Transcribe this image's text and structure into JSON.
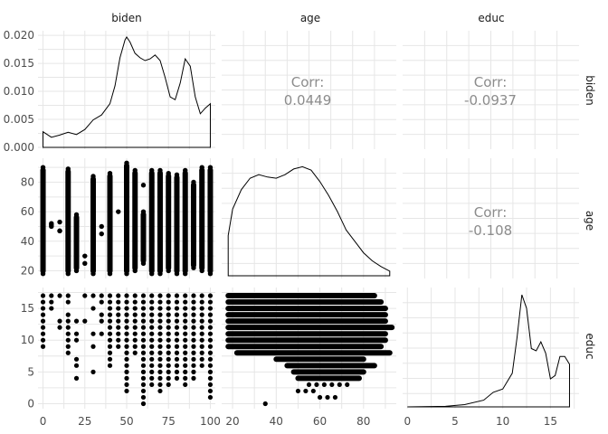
{
  "chart_data": {
    "type": "scatter",
    "title": "",
    "variables": [
      "biden",
      "age",
      "educ"
    ],
    "grid": true,
    "diagonal": [
      {
        "variable": "biden",
        "type": "density",
        "x": [
          0,
          5,
          10,
          15,
          20,
          25,
          30,
          35,
          40,
          43,
          46,
          49,
          50,
          52,
          55,
          58,
          61,
          64,
          67,
          70,
          73,
          76,
          79,
          82,
          85,
          88,
          91,
          94,
          97,
          100
        ],
        "y": [
          0.0028,
          0.0018,
          0.0022,
          0.0027,
          0.0023,
          0.0032,
          0.0049,
          0.0058,
          0.0078,
          0.011,
          0.016,
          0.0192,
          0.0197,
          0.0188,
          0.0168,
          0.016,
          0.0155,
          0.0158,
          0.0165,
          0.0155,
          0.0125,
          0.009,
          0.0085,
          0.0115,
          0.0158,
          0.0145,
          0.009,
          0.006,
          0.007,
          0.0078
        ],
        "yticks": [
          "0.000",
          "0.005",
          "0.010",
          "0.015",
          "0.020"
        ],
        "ylim": [
          0,
          0.0205
        ]
      },
      {
        "variable": "age",
        "type": "density",
        "x": [
          18,
          20,
          24,
          28,
          32,
          36,
          40,
          44,
          48,
          52,
          56,
          60,
          64,
          68,
          72,
          76,
          80,
          84,
          88,
          92
        ],
        "y": [
          0.35,
          0.58,
          0.75,
          0.85,
          0.88,
          0.86,
          0.85,
          0.88,
          0.93,
          0.95,
          0.92,
          0.82,
          0.7,
          0.56,
          0.4,
          0.3,
          0.2,
          0.13,
          0.08,
          0.04
        ]
      },
      {
        "variable": "educ",
        "type": "density",
        "x": [
          0,
          4,
          6,
          8,
          9,
          10,
          11,
          11.5,
          12,
          12.5,
          13,
          13.5,
          14,
          14.5,
          15,
          15.5,
          16,
          16.5,
          17
        ],
        "y": [
          0.0,
          0.005,
          0.02,
          0.06,
          0.13,
          0.16,
          0.3,
          0.62,
          1.0,
          0.88,
          0.52,
          0.5,
          0.58,
          0.48,
          0.25,
          0.28,
          0.45,
          0.45,
          0.38
        ]
      }
    ],
    "correlations": [
      {
        "row": "biden",
        "col": "age",
        "label": "Corr:",
        "value": "0.0449"
      },
      {
        "row": "biden",
        "col": "educ",
        "label": "Corr:",
        "value": "-0.0937"
      },
      {
        "row": "age",
        "col": "educ",
        "label": "Corr:",
        "value": "-0.108"
      }
    ],
    "scatter": [
      {
        "row": "age",
        "col": "biden",
        "x_values": [
          0,
          5,
          10,
          15,
          20,
          25,
          30,
          35,
          40,
          50,
          55,
          60,
          65,
          70,
          75,
          80,
          85,
          90,
          95,
          100
        ],
        "y_ranges": [
          [
            18,
            90
          ],
          [
            50,
            52
          ],
          [
            47,
            53
          ],
          [
            18,
            89
          ],
          [
            20,
            58
          ],
          [
            25,
            30
          ],
          [
            18,
            84
          ],
          [
            45,
            50
          ],
          [
            18,
            86
          ],
          [
            18,
            93
          ],
          [
            20,
            88
          ],
          [
            25,
            60
          ],
          [
            18,
            88
          ],
          [
            18,
            88
          ],
          [
            20,
            86
          ],
          [
            18,
            85
          ],
          [
            18,
            88
          ],
          [
            22,
            80
          ],
          [
            20,
            90
          ],
          [
            18,
            90
          ]
        ],
        "yticks": [
          "20",
          "40",
          "60",
          "80"
        ],
        "ylim": [
          16,
          95
        ]
      },
      {
        "row": "educ",
        "col": "biden",
        "x_values": [
          0,
          5,
          10,
          15,
          20,
          25,
          30,
          35,
          40,
          45,
          50,
          55,
          60,
          65,
          70,
          75,
          80,
          85,
          90,
          95,
          100
        ],
        "y_ranges": [
          [
            9,
            17
          ],
          [
            14,
            17
          ],
          [
            12,
            17
          ],
          [
            8,
            17
          ],
          [
            4,
            13
          ],
          [
            13,
            17
          ],
          [
            5,
            17
          ],
          [
            9,
            17
          ],
          [
            6,
            17
          ],
          [
            9,
            17
          ],
          [
            2,
            17
          ],
          [
            8,
            17
          ],
          [
            0,
            17
          ],
          [
            3,
            17
          ],
          [
            2,
            17
          ],
          [
            3,
            17
          ],
          [
            4,
            17
          ],
          [
            3,
            17
          ],
          [
            4,
            17
          ],
          [
            6,
            17
          ],
          [
            1,
            17
          ]
        ],
        "yticks": [
          "0",
          "5",
          "10",
          "15"
        ],
        "ylim": [
          -0.5,
          18
        ],
        "xticks": [
          "0",
          "25",
          "50",
          "75",
          "100"
        ],
        "xlim": [
          -3,
          103
        ]
      },
      {
        "row": "educ",
        "col": "age",
        "x_range": [
          18,
          93
        ],
        "rows": [
          [
            17,
            18,
            85
          ],
          [
            16,
            18,
            88
          ],
          [
            15,
            18,
            90
          ],
          [
            14,
            18,
            90
          ],
          [
            13,
            18,
            90
          ],
          [
            12,
            18,
            93
          ],
          [
            11,
            18,
            90
          ],
          [
            10,
            18,
            90
          ],
          [
            9,
            18,
            88
          ],
          [
            8,
            22,
            92
          ],
          [
            7,
            40,
            80
          ],
          [
            6,
            45,
            85
          ],
          [
            5,
            48,
            80
          ],
          [
            4,
            50,
            78
          ],
          [
            3,
            55,
            75
          ],
          [
            2,
            50,
            60
          ],
          [
            1,
            60,
            70
          ],
          [
            0,
            35,
            36
          ]
        ],
        "xticks": [
          "20",
          "40",
          "60",
          "80"
        ],
        "xlim": [
          15,
          95
        ]
      },
      {
        "row": "educ",
        "col": "educ",
        "xticks": [
          "0",
          "5",
          "10",
          "15"
        ],
        "xlim": [
          -0.5,
          18
        ]
      }
    ]
  }
}
